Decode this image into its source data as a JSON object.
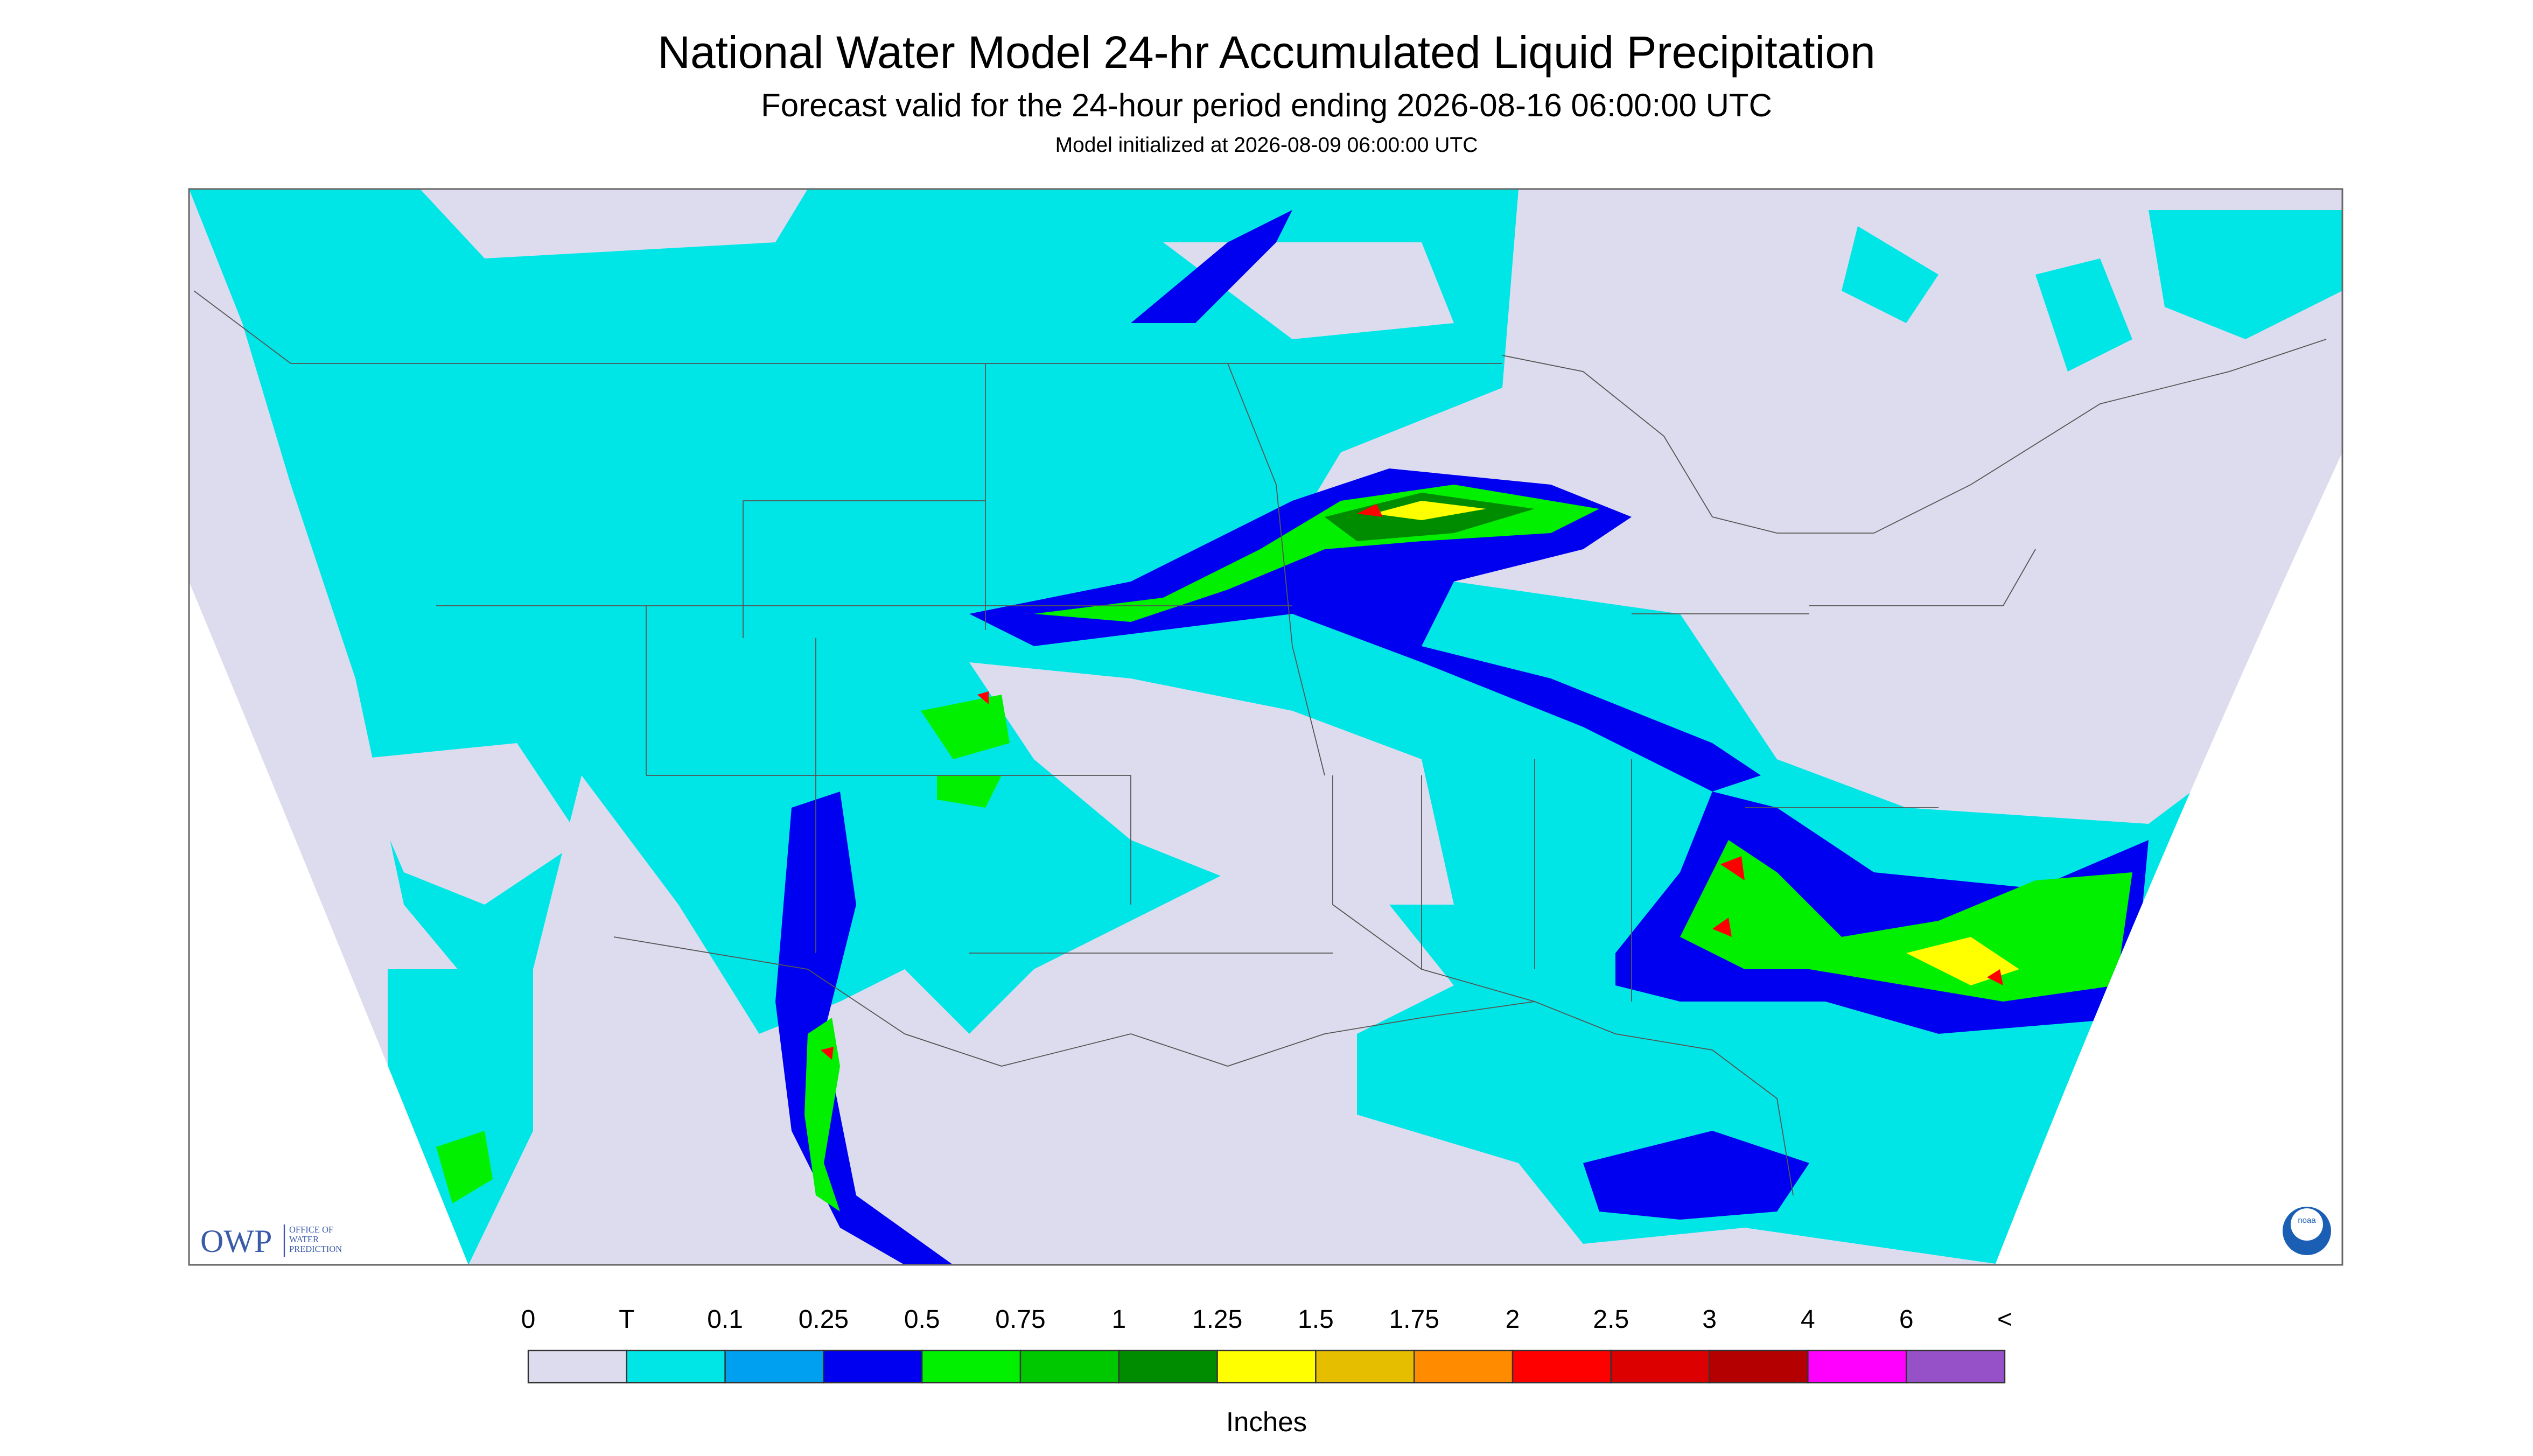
{
  "header": {
    "title": "National Water Model 24-hr Accumulated Liquid Precipitation",
    "subtitle": "Forecast valid for the 24-hour period ending 2026-08-16 06:00:00 UTC",
    "note": "Model initialized at 2026-08-09 06:00:00 UTC"
  },
  "logo": {
    "short": "OWP",
    "long": [
      "OFFICE OF",
      "WATER",
      "PREDICTION"
    ],
    "badge": "noaa"
  },
  "legend": {
    "labels": [
      "0",
      "T",
      "0.1",
      "0.25",
      "0.5",
      "0.75",
      "1",
      "1.25",
      "1.5",
      "1.75",
      "2",
      "2.5",
      "3",
      "4",
      "6",
      "<"
    ],
    "colors": [
      "#dcdcee",
      "#00e6e6",
      "#00a0f0",
      "#0000f0",
      "#00f000",
      "#00c800",
      "#008c00",
      "#ffff00",
      "#e6be00",
      "#ff8c00",
      "#ff0000",
      "#dc0000",
      "#b40000",
      "#ff00ff",
      "#9650c8"
    ],
    "unit": "Inches"
  }
}
